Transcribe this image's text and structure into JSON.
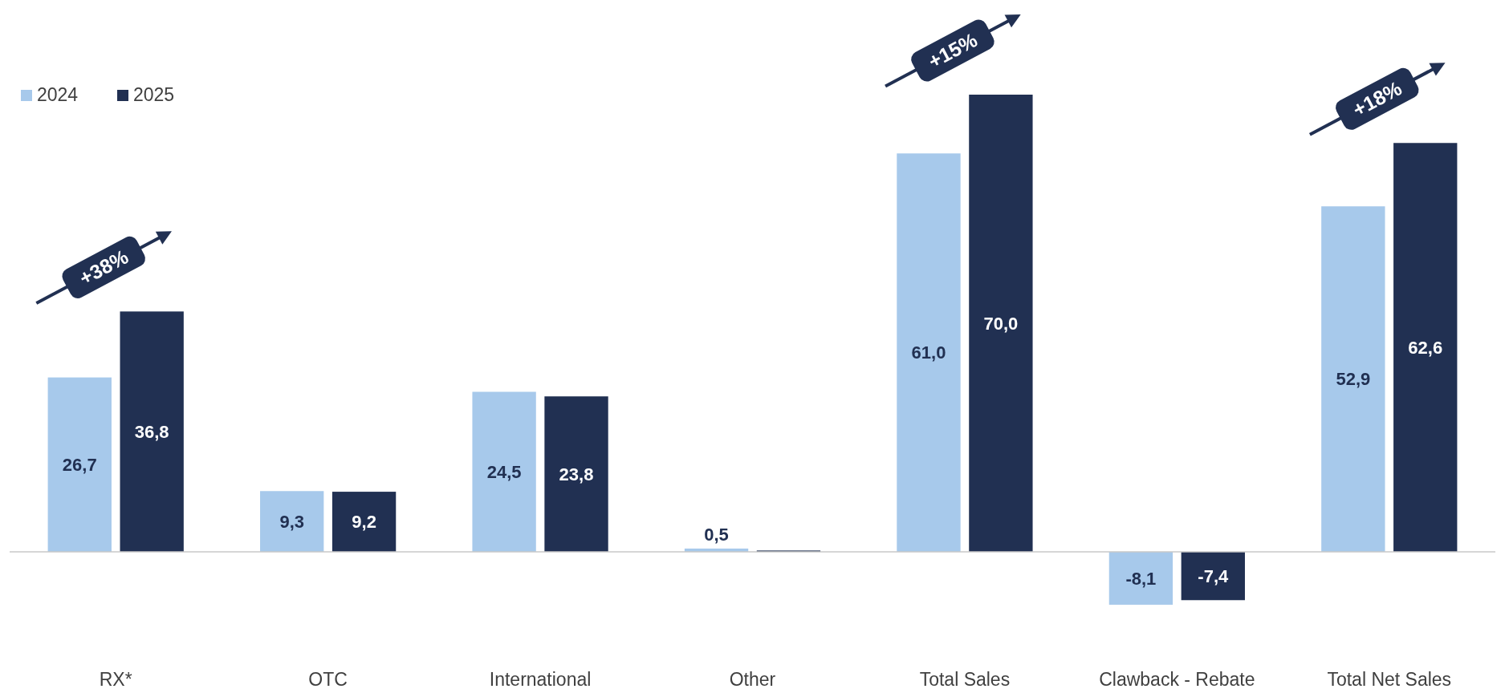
{
  "chart_data": {
    "type": "bar",
    "categories": [
      "RX*",
      "OTC",
      "International",
      "Other",
      "Total Sales",
      "Clawback - Rebate",
      "Total Net Sales"
    ],
    "series": [
      {
        "name": "2024",
        "color": "#a7c9eb",
        "values": [
          26.7,
          9.3,
          24.5,
          0.5,
          61.0,
          -8.1,
          52.9
        ],
        "value_labels": [
          "26,7",
          "9,3",
          "24,5",
          "0,5",
          "61,0",
          "-8,1",
          "52,9"
        ]
      },
      {
        "name": "2025",
        "color": "#213052",
        "values": [
          36.8,
          9.2,
          23.8,
          0.2,
          70.0,
          -7.4,
          62.6
        ],
        "value_labels": [
          "36,8",
          "9,2",
          "23,8",
          null,
          "70,0",
          "-7,4",
          "62,6"
        ]
      }
    ],
    "annotations": [
      "+38%",
      "+15%",
      "+18%"
    ],
    "legend": "top left"
  }
}
